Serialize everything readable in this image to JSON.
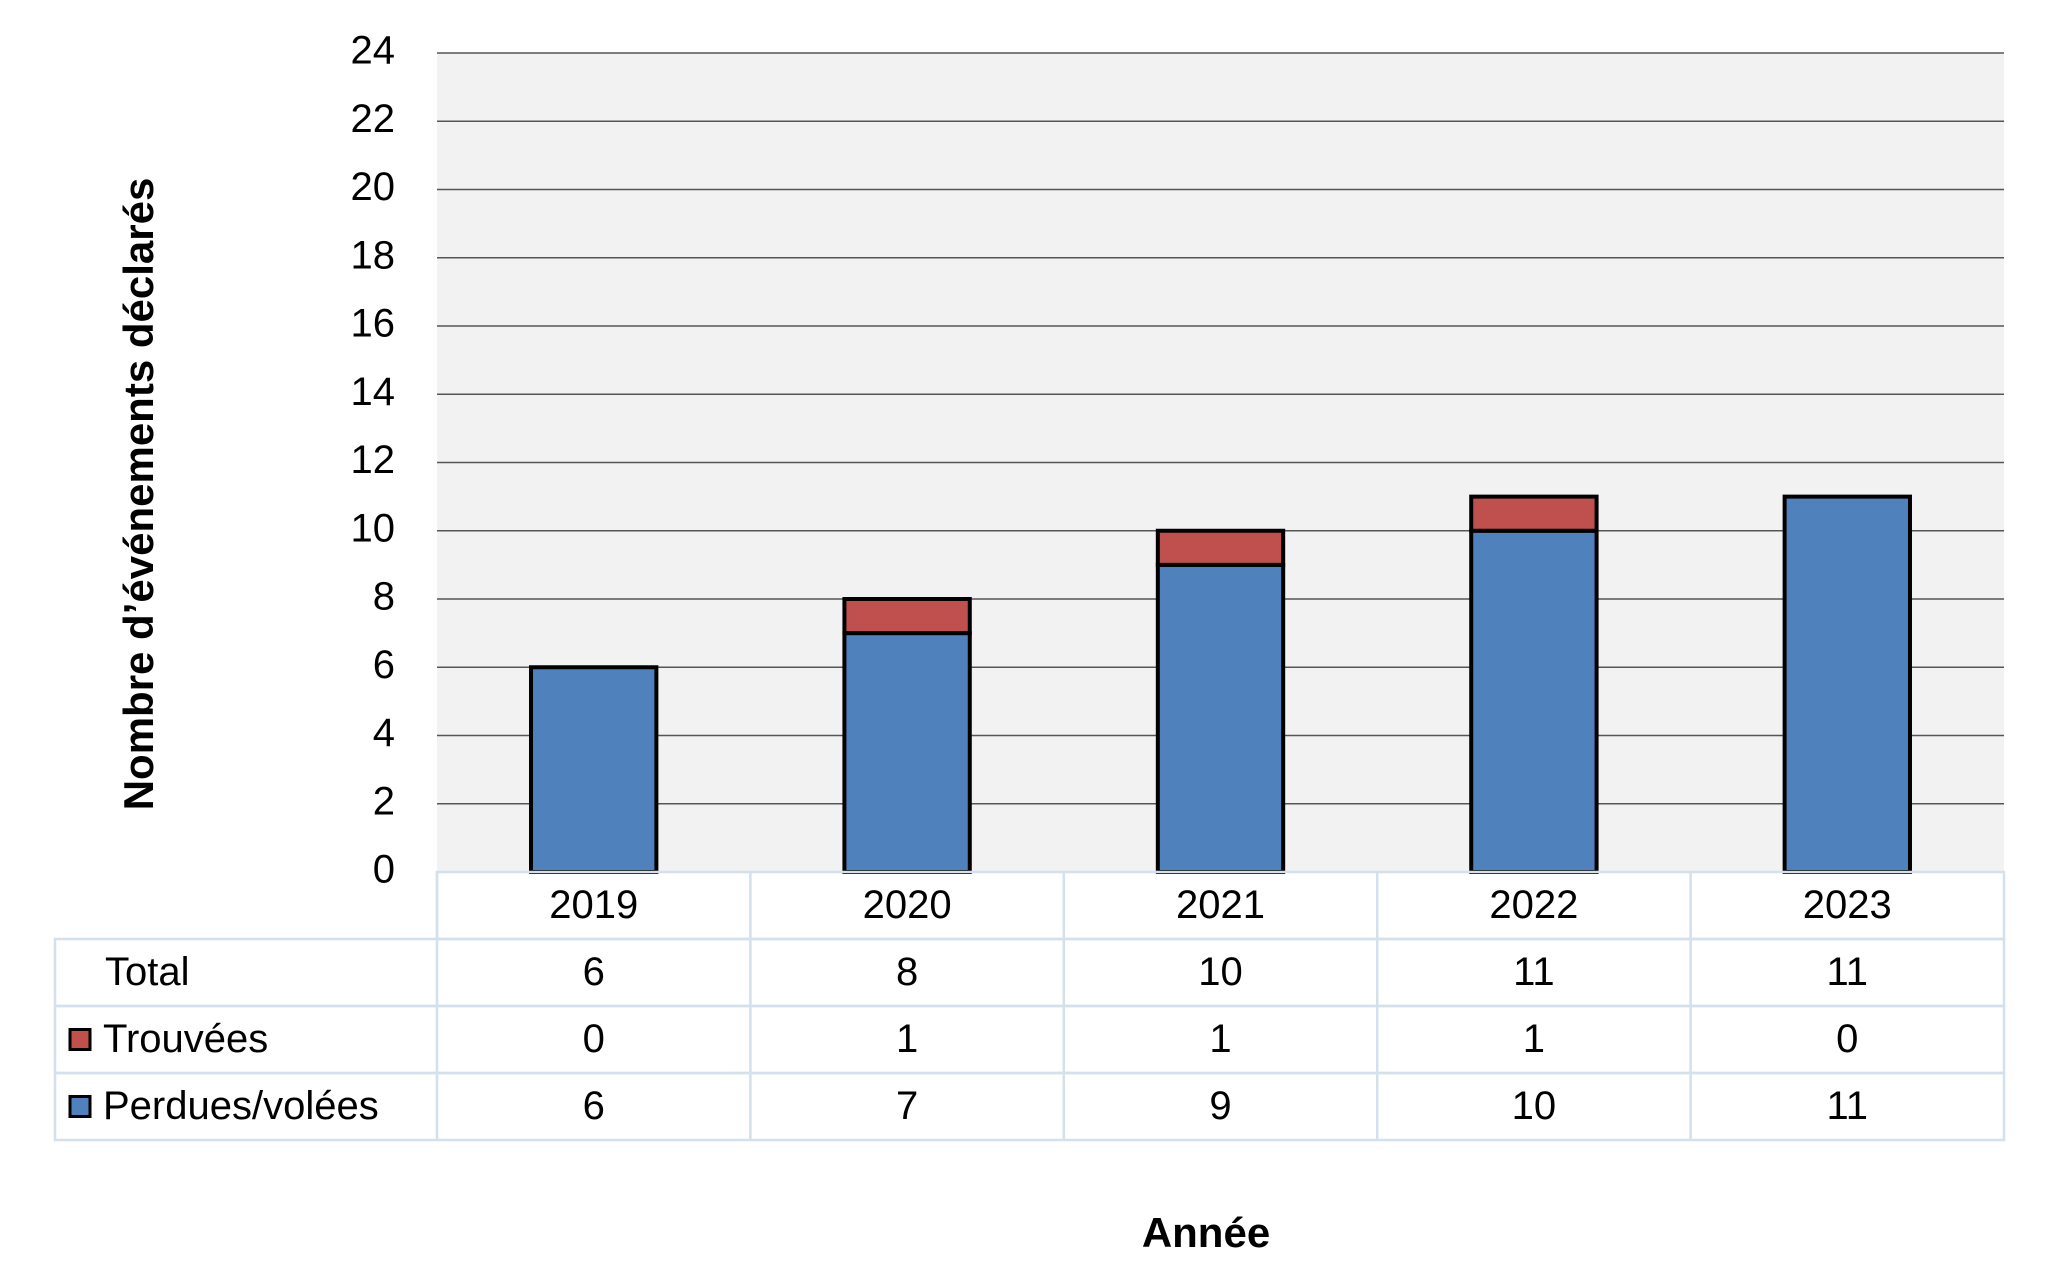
{
  "chart_data": {
    "type": "stacked_bar",
    "y_axis_label": "Nombre d’événements déclarés",
    "x_axis_label": "Année",
    "categories": [
      "2019",
      "2020",
      "2021",
      "2022",
      "2023"
    ],
    "series": [
      {
        "name": "Perdues/volées",
        "color": "#4f81bd",
        "values": [
          6,
          7,
          9,
          10,
          11
        ]
      },
      {
        "name": "Trouvées",
        "color": "#c0504d",
        "values": [
          0,
          1,
          1,
          1,
          0
        ]
      }
    ],
    "totals": {
      "name": "Total",
      "values": [
        6,
        8,
        10,
        11,
        11
      ]
    },
    "ylim": [
      0,
      24
    ],
    "yticks": [
      0,
      2,
      4,
      6,
      8,
      10,
      12,
      14,
      16,
      18,
      20,
      22,
      24
    ],
    "grid": true,
    "plot_background": "#f2f2f2"
  }
}
